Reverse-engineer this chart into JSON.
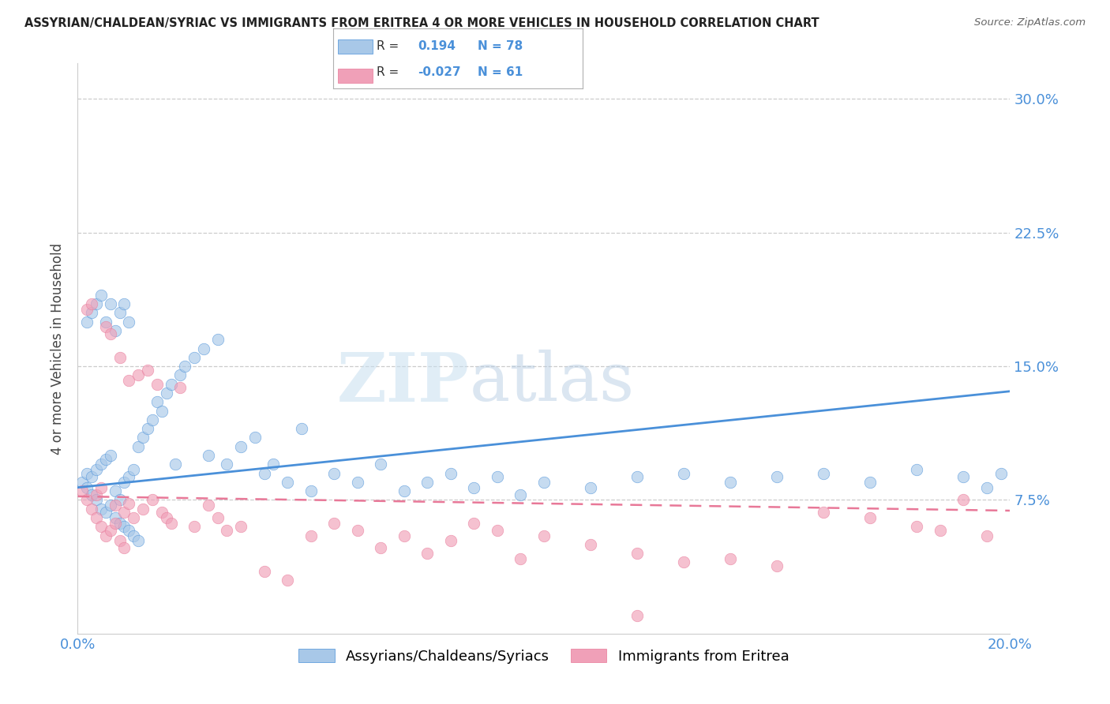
{
  "title": "ASSYRIAN/CHALDEAN/SYRIAC VS IMMIGRANTS FROM ERITREA 4 OR MORE VEHICLES IN HOUSEHOLD CORRELATION CHART",
  "source": "Source: ZipAtlas.com",
  "ylabel": "4 or more Vehicles in Household",
  "ytick_labels": [
    "7.5%",
    "15.0%",
    "22.5%",
    "30.0%"
  ],
  "ytick_values": [
    0.075,
    0.15,
    0.225,
    0.3
  ],
  "xlim": [
    0.0,
    0.2
  ],
  "ylim": [
    0.0,
    0.32
  ],
  "legend_label1": "Assyrians/Chaldeans/Syriacs",
  "legend_label2": "Immigrants from Eritrea",
  "R1": 0.194,
  "N1": 78,
  "R2": -0.027,
  "N2": 61,
  "color1": "#a8c8e8",
  "color2": "#f0a0b8",
  "line_color1": "#4a90d9",
  "line_color2": "#e87898",
  "background_color": "#ffffff",
  "watermark_zip": "ZIP",
  "watermark_atlas": "atlas",
  "blue_line_y0": 0.082,
  "blue_line_y1": 0.136,
  "pink_line_y0": 0.077,
  "pink_line_y1": 0.069,
  "blue_x": [
    0.001,
    0.002,
    0.002,
    0.003,
    0.003,
    0.004,
    0.004,
    0.005,
    0.005,
    0.006,
    0.006,
    0.007,
    0.007,
    0.008,
    0.008,
    0.009,
    0.009,
    0.01,
    0.01,
    0.011,
    0.011,
    0.012,
    0.012,
    0.013,
    0.013,
    0.014,
    0.015,
    0.016,
    0.017,
    0.018,
    0.019,
    0.02,
    0.021,
    0.022,
    0.023,
    0.025,
    0.027,
    0.028,
    0.03,
    0.032,
    0.035,
    0.038,
    0.04,
    0.042,
    0.045,
    0.048,
    0.05,
    0.055,
    0.06,
    0.065,
    0.07,
    0.075,
    0.08,
    0.085,
    0.09,
    0.095,
    0.1,
    0.11,
    0.12,
    0.13,
    0.14,
    0.15,
    0.16,
    0.17,
    0.18,
    0.19,
    0.195,
    0.198,
    0.002,
    0.003,
    0.004,
    0.005,
    0.006,
    0.007,
    0.008,
    0.009,
    0.01,
    0.011
  ],
  "blue_y": [
    0.085,
    0.082,
    0.09,
    0.078,
    0.088,
    0.075,
    0.092,
    0.07,
    0.095,
    0.068,
    0.098,
    0.072,
    0.1,
    0.08,
    0.065,
    0.075,
    0.062,
    0.085,
    0.06,
    0.088,
    0.058,
    0.092,
    0.055,
    0.105,
    0.052,
    0.11,
    0.115,
    0.12,
    0.13,
    0.125,
    0.135,
    0.14,
    0.095,
    0.145,
    0.15,
    0.155,
    0.16,
    0.1,
    0.165,
    0.095,
    0.105,
    0.11,
    0.09,
    0.095,
    0.085,
    0.115,
    0.08,
    0.09,
    0.085,
    0.095,
    0.08,
    0.085,
    0.09,
    0.082,
    0.088,
    0.078,
    0.085,
    0.082,
    0.088,
    0.09,
    0.085,
    0.088,
    0.09,
    0.085,
    0.092,
    0.088,
    0.082,
    0.09,
    0.175,
    0.18,
    0.185,
    0.19,
    0.175,
    0.185,
    0.17,
    0.18,
    0.185,
    0.175
  ],
  "pink_x": [
    0.001,
    0.002,
    0.002,
    0.003,
    0.003,
    0.004,
    0.004,
    0.005,
    0.005,
    0.006,
    0.006,
    0.007,
    0.007,
    0.008,
    0.008,
    0.009,
    0.009,
    0.01,
    0.01,
    0.011,
    0.011,
    0.012,
    0.013,
    0.014,
    0.015,
    0.016,
    0.017,
    0.018,
    0.019,
    0.02,
    0.022,
    0.025,
    0.028,
    0.03,
    0.032,
    0.035,
    0.04,
    0.045,
    0.05,
    0.055,
    0.06,
    0.065,
    0.07,
    0.075,
    0.08,
    0.085,
    0.09,
    0.095,
    0.1,
    0.11,
    0.12,
    0.13,
    0.14,
    0.15,
    0.16,
    0.17,
    0.18,
    0.185,
    0.19,
    0.195,
    0.12
  ],
  "pink_y": [
    0.08,
    0.075,
    0.182,
    0.07,
    0.185,
    0.065,
    0.078,
    0.06,
    0.082,
    0.172,
    0.055,
    0.168,
    0.058,
    0.072,
    0.062,
    0.155,
    0.052,
    0.068,
    0.048,
    0.073,
    0.142,
    0.065,
    0.145,
    0.07,
    0.148,
    0.075,
    0.14,
    0.068,
    0.065,
    0.062,
    0.138,
    0.06,
    0.072,
    0.065,
    0.058,
    0.06,
    0.035,
    0.03,
    0.055,
    0.062,
    0.058,
    0.048,
    0.055,
    0.045,
    0.052,
    0.062,
    0.058,
    0.042,
    0.055,
    0.05,
    0.045,
    0.04,
    0.042,
    0.038,
    0.068,
    0.065,
    0.06,
    0.058,
    0.075,
    0.055,
    0.01
  ]
}
